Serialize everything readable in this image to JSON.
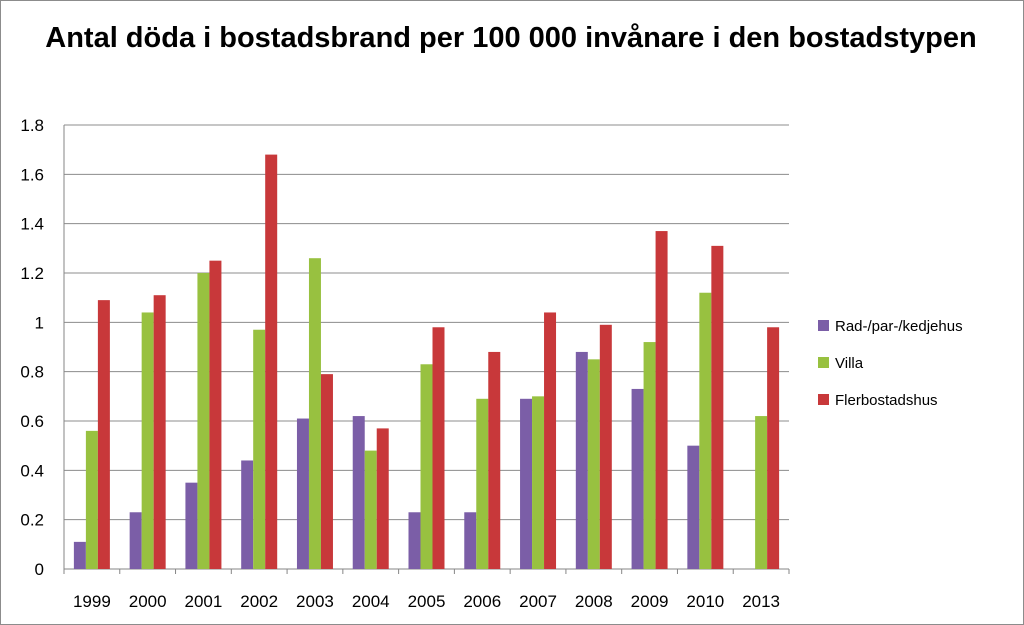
{
  "chart_data": {
    "type": "bar",
    "title": "Antal döda i bostadsbrand per 100 000 invånare i den bostadstypen",
    "xlabel": "",
    "ylabel": "",
    "categories": [
      "1999",
      "2000",
      "2001",
      "2002",
      "2003",
      "2004",
      "2005",
      "2006",
      "2007",
      "2008",
      "2009",
      "2010",
      "2013"
    ],
    "series": [
      {
        "name": "Rad-/par-/kedjehus",
        "color": "#7b5ea7",
        "values": [
          0.11,
          0.23,
          0.35,
          0.44,
          0.61,
          0.62,
          0.23,
          0.23,
          0.69,
          0.88,
          0.73,
          0.5,
          0
        ]
      },
      {
        "name": "Villa",
        "color": "#98c140",
        "values": [
          0.56,
          1.04,
          1.2,
          0.97,
          1.26,
          0.48,
          0.83,
          0.69,
          0.7,
          0.85,
          0.92,
          1.12,
          0.62
        ]
      },
      {
        "name": "Flerbostadshus",
        "color": "#c8383a",
        "values": [
          1.09,
          1.11,
          1.25,
          1.68,
          0.79,
          0.57,
          0.98,
          0.88,
          1.04,
          0.99,
          1.37,
          1.31,
          0.98
        ]
      }
    ],
    "ylim": [
      0,
      1.8
    ],
    "yticks": [
      "0",
      "0.2",
      "0.4",
      "0.6",
      "0.8",
      "1",
      "1.2",
      "1.4",
      "1.6",
      "1.8"
    ],
    "grid": true,
    "legend": "right"
  }
}
